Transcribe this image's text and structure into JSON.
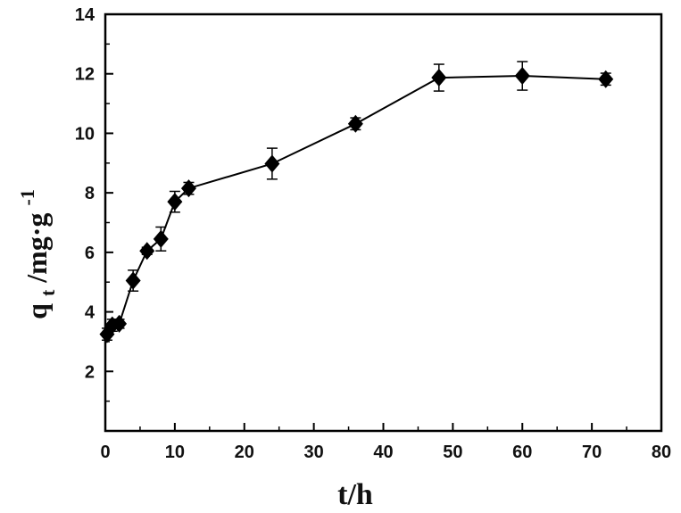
{
  "chart_data": {
    "type": "line",
    "xlabel": "t/h",
    "ylabel": {
      "main": "q",
      "subscript": "t",
      "rest": "/mg·g",
      "superscript": "-1"
    },
    "xlim": [
      0,
      80
    ],
    "ylim": [
      0,
      14
    ],
    "x_ticks": [
      "0",
      "10",
      "20",
      "30",
      "40",
      "50",
      "60",
      "70",
      "80"
    ],
    "y_ticks": [
      "2",
      "4",
      "6",
      "8",
      "10",
      "12",
      "14"
    ],
    "grid": false,
    "marker": "diamond",
    "color": "#000000",
    "series": [
      {
        "x": [
          0.25,
          1,
          2,
          4,
          6,
          8,
          10,
          12,
          24,
          36,
          48,
          60,
          72
        ],
        "y": [
          3.25,
          3.55,
          3.6,
          5.05,
          6.05,
          6.45,
          7.7,
          8.15,
          8.98,
          10.32,
          11.87,
          11.93,
          11.82
        ],
        "err": [
          0.2,
          0.2,
          0.15,
          0.35,
          0.12,
          0.4,
          0.35,
          0.2,
          0.52,
          0.2,
          0.45,
          0.48,
          0.2
        ]
      }
    ]
  }
}
